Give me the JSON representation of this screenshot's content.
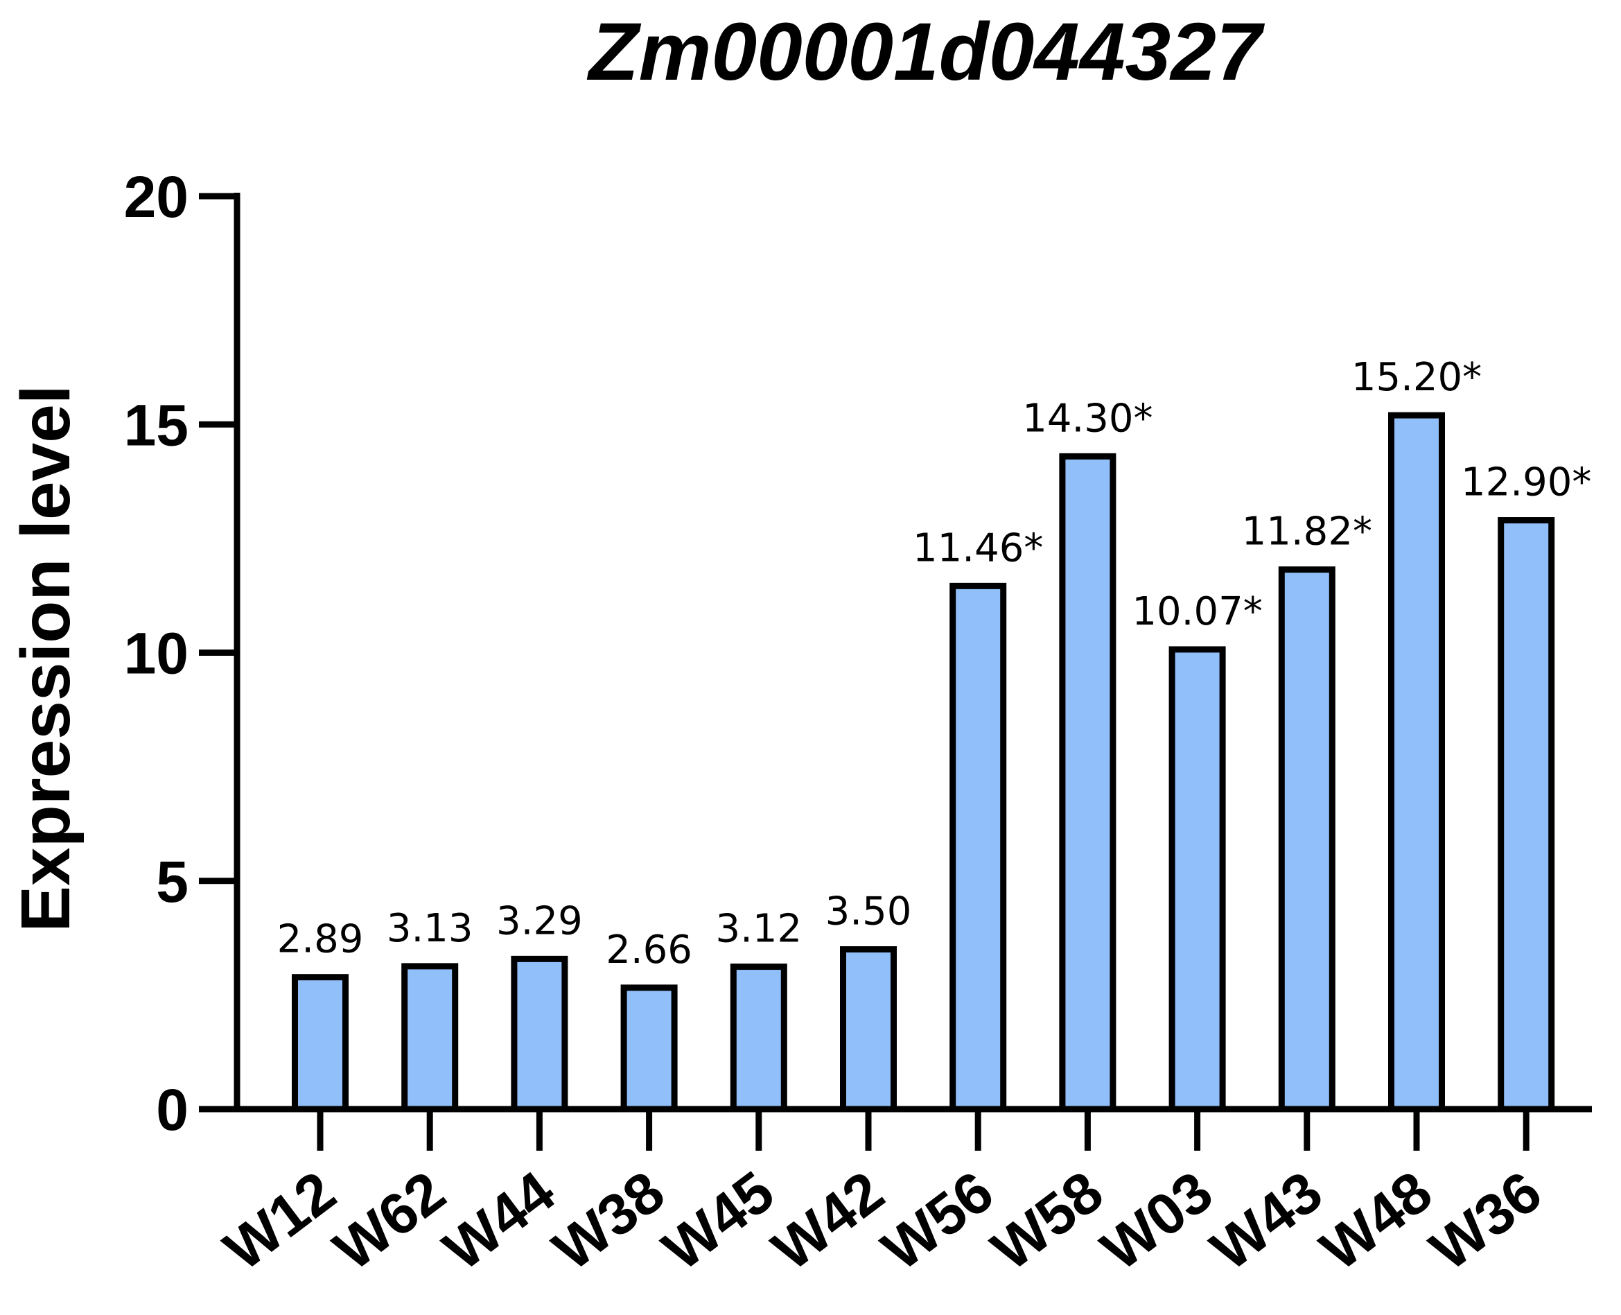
{
  "chart_data": {
    "type": "bar",
    "title": "Zm00001d044327",
    "xlabel": "",
    "ylabel": "Expression level",
    "ylim": [
      0,
      20
    ],
    "yticks": [
      "0",
      "5",
      "10",
      "15",
      "20"
    ],
    "categories": [
      "W12",
      "W62",
      "W44",
      "W38",
      "W45",
      "W42",
      "W56",
      "W58",
      "W03",
      "W43",
      "W48",
      "W36"
    ],
    "values": [
      2.89,
      3.13,
      3.29,
      2.66,
      3.12,
      3.5,
      11.46,
      14.3,
      10.07,
      11.82,
      15.2,
      12.9
    ],
    "data_labels": [
      "2.89",
      "3.13",
      "3.29",
      "2.66",
      "3.12",
      "3.50",
      "11.46*",
      "14.30*",
      "10.07*",
      "11.82*",
      "15.20*",
      "12.90*"
    ],
    "bar_color": "#91bff9",
    "grid": false,
    "legend": "none"
  }
}
